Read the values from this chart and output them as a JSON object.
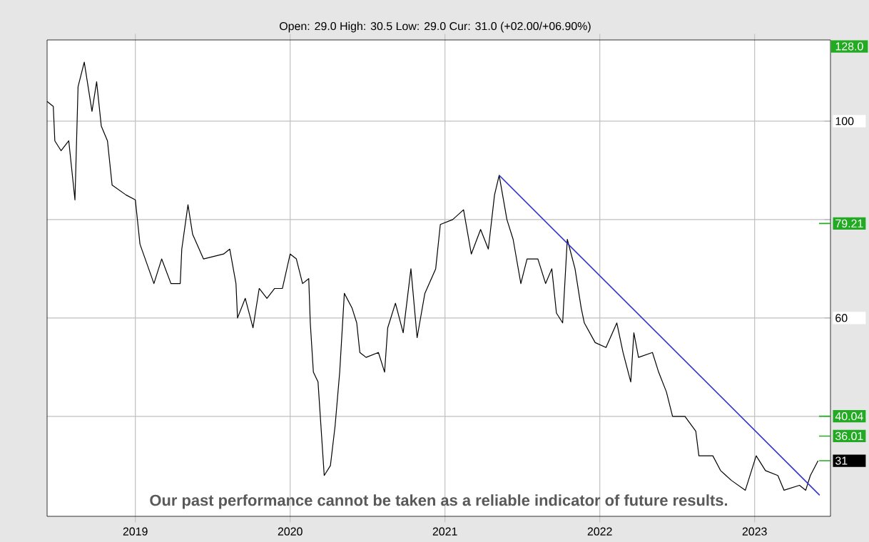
{
  "chart_data": {
    "type": "line",
    "subtitle": "Open: 29.0 High: 30.5 Low: 29.0 Cur: 31.0 (+02.00/+06.90%)",
    "xlim": [
      2018.43,
      2023.49
    ],
    "xticks": [
      2019,
      2020,
      2021,
      2022,
      2023
    ],
    "ylim": [
      19.7,
      116.5
    ],
    "yticks": [
      100,
      60,
      {
        "value": 80,
        "label": null
      },
      {
        "value": 40,
        "label": null
      },
      {
        "value": 79.21,
        "label": "79.21"
      },
      {
        "value": 40.04,
        "label": "40.04"
      },
      {
        "value": 36.01,
        "label": "36.01"
      },
      {
        "value": 31,
        "label": "31"
      }
    ],
    "grid": true,
    "series": [
      {
        "color": "#000000",
        "x": [
          2018.43,
          2018.47,
          2018.48,
          2018.52,
          2018.57,
          2018.61,
          2018.63,
          2018.67,
          2018.72,
          2018.75,
          2018.78,
          2018.82,
          2018.85,
          2018.94,
          2019.0,
          2019.03,
          2019.12,
          2019.17,
          2019.23,
          2019.29,
          2019.3,
          2019.34,
          2019.37,
          2019.44,
          2019.57,
          2019.61,
          2019.65,
          2019.66,
          2019.71,
          2019.76,
          2019.8,
          2019.85,
          2019.9,
          2019.95,
          2020.0,
          2020.04,
          2020.08,
          2020.12,
          2020.13,
          2020.15,
          2020.18,
          2020.22,
          2020.26,
          2020.29,
          2020.32,
          2020.35,
          2020.4,
          2020.43,
          2020.45,
          2020.49,
          2020.57,
          2020.61,
          2020.63,
          2020.68,
          2020.73,
          2020.78,
          2020.82,
          2020.87,
          2020.94,
          2020.97,
          2021.05,
          2021.12,
          2021.17,
          2021.23,
          2021.28,
          2021.32,
          2021.35,
          2021.4,
          2021.44,
          2021.49,
          2021.53,
          2021.6,
          2021.65,
          2021.69,
          2021.72,
          2021.76,
          2021.79,
          2021.84,
          2021.88,
          2021.9,
          2021.97,
          2022.04,
          2022.11,
          2022.15,
          2022.2,
          2022.22,
          2022.25,
          2022.34,
          2022.38,
          2022.43,
          2022.47,
          2022.55,
          2022.62,
          2022.64,
          2022.73,
          2022.78,
          2022.85,
          2022.94,
          2023.01,
          2023.07,
          2023.15,
          2023.19,
          2023.29,
          2023.33,
          2023.36,
          2023.41
        ],
        "values": [
          104,
          103,
          96,
          94,
          96,
          84,
          107,
          112,
          102,
          108,
          99,
          96,
          87,
          85,
          84,
          75,
          67,
          72,
          67,
          67,
          74,
          83,
          77,
          72,
          73,
          74,
          67,
          60,
          64,
          58,
          66,
          64,
          66,
          66,
          73,
          72,
          67,
          68,
          59,
          49,
          47,
          28,
          30,
          38,
          49,
          65,
          62,
          59,
          53,
          52,
          53,
          49,
          58,
          63,
          57,
          70,
          56,
          65,
          70,
          79,
          80,
          82,
          73,
          78,
          74,
          85,
          89,
          80,
          76,
          67,
          72,
          72,
          67,
          70,
          61,
          59,
          76,
          70,
          62,
          59,
          55,
          54,
          59,
          53,
          47,
          57,
          52,
          53,
          49,
          45,
          40,
          40,
          37,
          32,
          32,
          29,
          27,
          25,
          32,
          29,
          28,
          25,
          26,
          25,
          28,
          31
        ]
      },
      {
        "color": "#3333cc",
        "x": [
          2021.35,
          2023.42
        ],
        "values": [
          89,
          24
        ]
      }
    ],
    "annotations": [
      "Our past performance cannot be taken as a reliable indicator of future results.",
      "128.0"
    ]
  }
}
